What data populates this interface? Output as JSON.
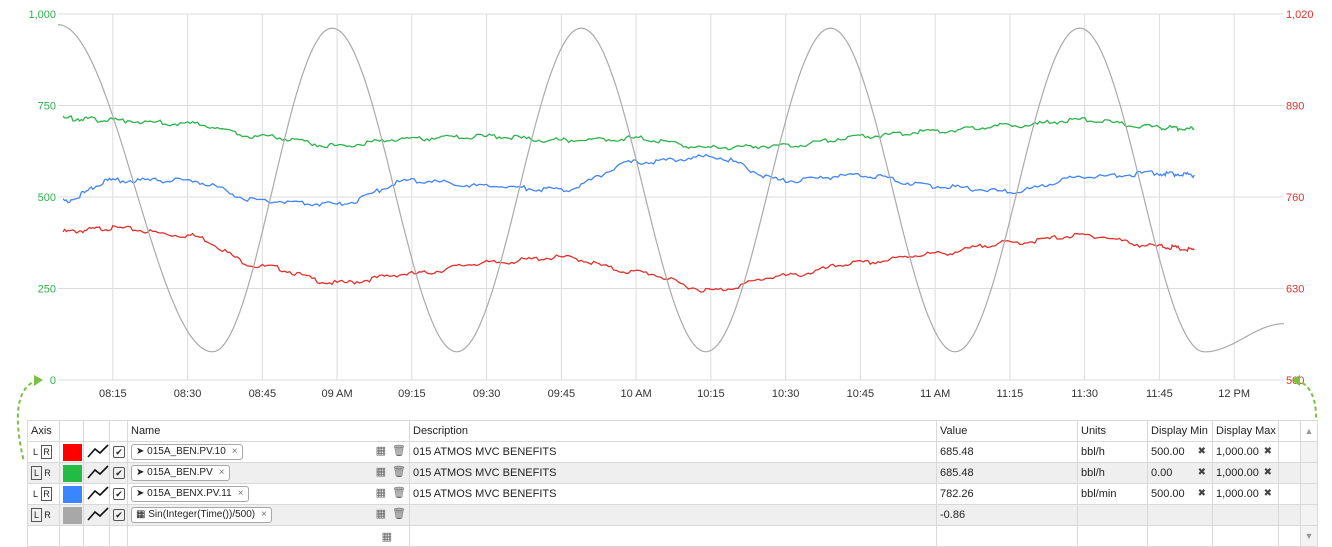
{
  "chart": {
    "x_ticks": [
      "08:15",
      "08:30",
      "08:45",
      "09 AM",
      "09:15",
      "09:30",
      "09:45",
      "10 AM",
      "10:15",
      "10:30",
      "10:45",
      "11 AM",
      "11:15",
      "11:30",
      "11:45",
      "12 PM"
    ],
    "left_axis": {
      "ticks": [
        "0",
        "250",
        "500",
        "750",
        "1,000"
      ],
      "color": "#2cb34a"
    },
    "right_axis": {
      "ticks": [
        "500",
        "630",
        "760",
        "890",
        "1,020"
      ],
      "color": "#e0312b"
    }
  },
  "chart_data": {
    "type": "line",
    "x_start": "08:04",
    "x_end": "12:10",
    "x_ticks": [
      "08:15",
      "08:30",
      "08:45",
      "09 AM",
      "09:15",
      "09:30",
      "09:45",
      "10 AM",
      "10:15",
      "10:30",
      "10:45",
      "11 AM",
      "11:15",
      "11:30",
      "11:45",
      "12 PM"
    ],
    "y_left_range": [
      0,
      1000
    ],
    "y_left_ticks": [
      0,
      250,
      500,
      750,
      1000
    ],
    "y_right_range": [
      500,
      1020
    ],
    "y_right_ticks": [
      500,
      630,
      760,
      890,
      1020
    ],
    "grid": true,
    "series": [
      {
        "color": "#e0312b",
        "axis": "left",
        "x": [
          "08:05",
          "08:15",
          "08:30",
          "08:45",
          "09:00",
          "09:15",
          "09:30",
          "09:45",
          "10:00",
          "10:15",
          "10:30",
          "10:45",
          "11:00",
          "11:15",
          "11:30",
          "11:45",
          "11:52"
        ],
        "values": [
          405,
          415,
          395,
          310,
          265,
          290,
          320,
          335,
          295,
          245,
          285,
          320,
          345,
          375,
          395,
          365,
          355
        ]
      },
      {
        "color": "#2cb34a",
        "axis": "left",
        "x": [
          "08:05",
          "08:15",
          "08:30",
          "08:45",
          "09:00",
          "09:15",
          "09:30",
          "09:45",
          "10:00",
          "10:15",
          "10:30",
          "10:45",
          "11:00",
          "11:15",
          "11:30",
          "11:45",
          "11:52"
        ],
        "values": [
          715,
          710,
          700,
          665,
          640,
          660,
          665,
          655,
          660,
          635,
          640,
          665,
          680,
          695,
          710,
          690,
          685
        ]
      },
      {
        "color": "#4285f4",
        "axis": "left",
        "x": [
          "08:05",
          "08:15",
          "08:30",
          "08:45",
          "09:00",
          "09:15",
          "09:30",
          "09:45",
          "10:00",
          "10:15",
          "10:30",
          "10:45",
          "11:00",
          "11:15",
          "11:30",
          "11:45",
          "11:52"
        ],
        "values": [
          490,
          545,
          545,
          490,
          480,
          545,
          530,
          520,
          595,
          610,
          545,
          560,
          530,
          515,
          555,
          565,
          560
        ]
      },
      {
        "color": "#aaaaaa",
        "axis": "right",
        "x": [
          "08:04",
          "08:35",
          "08:59",
          "09:24",
          "09:49",
          "10:14",
          "10:39",
          "11:04",
          "11:29",
          "11:54",
          "12:10"
        ],
        "values": [
          1005,
          540,
          1000,
          540,
          1000,
          540,
          1000,
          540,
          1000,
          540,
          580
        ]
      }
    ]
  },
  "table": {
    "headers": {
      "axis": "Axis",
      "name": "Name",
      "description": "Description",
      "value": "Value",
      "units": "Units",
      "display_min": "Display Min",
      "display_max": "Display Max"
    },
    "rows": [
      {
        "left": "L",
        "right": "R",
        "color": "#ff0000",
        "name": "015A_BEN.PV.10",
        "description": "015 ATMOS MVC BENEFITS",
        "value": "685.48",
        "units": "bbl/h",
        "display_min": "500.00",
        "display_max": "1,000.00"
      },
      {
        "left": "L",
        "right": "R",
        "color": "#22bb44",
        "name": "015A_BEN.PV",
        "description": "015 ATMOS MVC BENEFITS",
        "value": "685.48",
        "units": "bbl/h",
        "display_min": "0.00",
        "display_max": "1,000.00"
      },
      {
        "left": "L",
        "right": "R",
        "color": "#3a86ff",
        "name": "015A_BENX.PV.11",
        "description": "015 ATMOS MVC BENEFITS",
        "value": "782.26",
        "units": "bbl/min",
        "display_min": "500.00",
        "display_max": "1,000.00"
      },
      {
        "left": "L",
        "right": "R",
        "color": "#a8a8a8",
        "name": "Sin(Integer(Time())/500)",
        "description": "",
        "value": "-0.86",
        "units": "",
        "display_min": "",
        "display_max": ""
      }
    ]
  },
  "icons": {
    "tag": "tag-icon",
    "calculator": "calculator-icon",
    "trash": "trash-icon",
    "trend": "trend-line-icon",
    "check": "checkbox-icon",
    "clear": "clear-x-icon",
    "remove": "remove-x-icon"
  }
}
